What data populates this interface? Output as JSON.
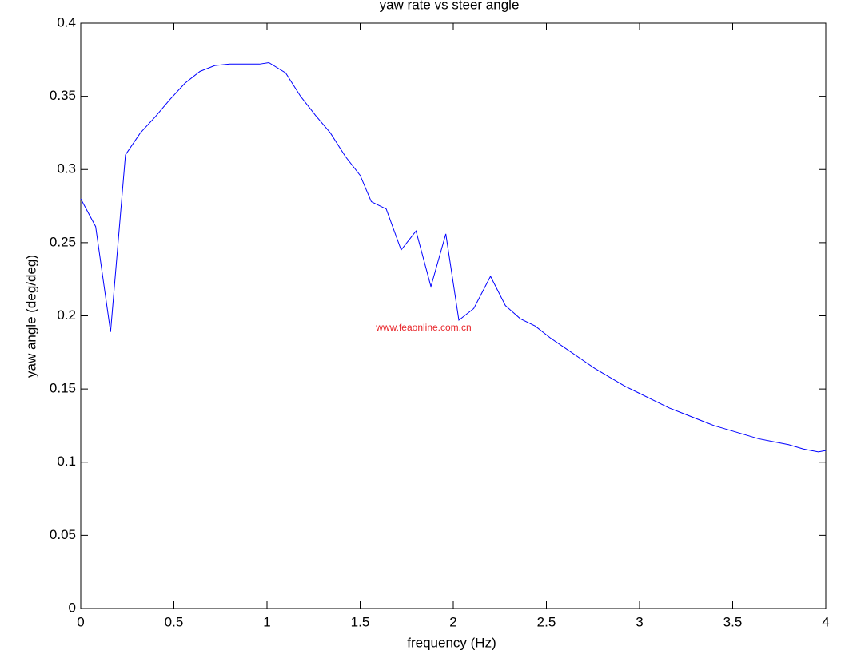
{
  "chart_data": {
    "type": "line",
    "title": "yaw rate vs steer angle",
    "x_label": "frequency (Hz)",
    "y_label": "yaw angle (deg/deg)",
    "annotation": "www.feaonline.com.cn",
    "xlim": [
      0,
      4
    ],
    "ylim": [
      0,
      0.4
    ],
    "xticks": [
      0,
      0.5,
      1,
      1.5,
      2,
      2.5,
      3,
      3.5,
      4
    ],
    "yticks": [
      0,
      0.05,
      0.1,
      0.15,
      0.2,
      0.25,
      0.3,
      0.35,
      0.4
    ],
    "grid": false,
    "x": [
      0,
      0.08,
      0.16,
      0.24,
      0.32,
      0.4,
      0.48,
      0.56,
      0.64,
      0.72,
      0.8,
      0.88,
      0.96,
      1.01,
      1.1,
      1.18,
      1.26,
      1.34,
      1.42,
      1.5,
      1.56,
      1.64,
      1.72,
      1.8,
      1.88,
      1.96,
      2.03,
      2.11,
      2.2,
      2.28,
      2.36,
      2.44,
      2.52,
      2.6,
      2.68,
      2.76,
      2.84,
      2.92,
      3.0,
      3.08,
      3.16,
      3.24,
      3.32,
      3.4,
      3.48,
      3.56,
      3.64,
      3.72,
      3.8,
      3.88,
      3.96,
      4.0
    ],
    "series": [
      {
        "name": "yaw rate",
        "color": "#0000ff",
        "values": [
          0.28,
          0.261,
          0.189,
          0.31,
          0.325,
          0.336,
          0.348,
          0.359,
          0.367,
          0.371,
          0.372,
          0.372,
          0.372,
          0.373,
          0.366,
          0.35,
          0.337,
          0.325,
          0.309,
          0.296,
          0.278,
          0.273,
          0.245,
          0.258,
          0.22,
          0.256,
          0.197,
          0.205,
          0.227,
          0.207,
          0.198,
          0.193,
          0.185,
          0.178,
          0.171,
          0.164,
          0.158,
          0.152,
          0.147,
          0.142,
          0.137,
          0.133,
          0.129,
          0.125,
          0.122,
          0.119,
          0.116,
          0.114,
          0.112,
          0.109,
          0.107,
          0.108
        ]
      }
    ]
  }
}
